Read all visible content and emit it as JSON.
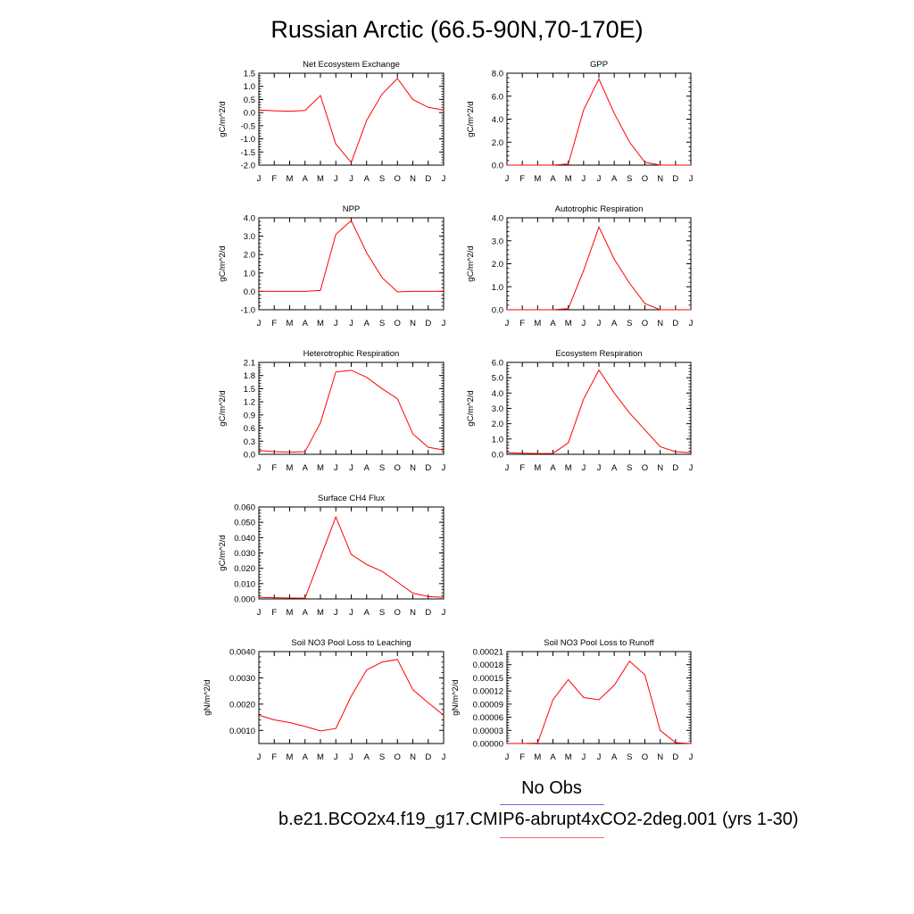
{
  "title": "Russian Arctic (66.5-90N,70-170E)",
  "legend": {
    "obs_label": "No Obs",
    "obs_color": "#0000ff",
    "case_label": "b.e21.BCO2x4.f19_g17.CMIP6-abrupt4xCO2-2deg.001 (yrs 1-30)",
    "case_color": "#ff0000"
  },
  "chart_data": [
    {
      "type": "line",
      "title": "Net Ecosystem Exchange",
      "ylabel": "gC/m^2/d",
      "categories": [
        "J",
        "F",
        "M",
        "A",
        "M",
        "J",
        "J",
        "A",
        "S",
        "O",
        "N",
        "D",
        "J"
      ],
      "ylim": [
        -2.0,
        1.5
      ],
      "yticks": [
        1.5,
        1.0,
        0.5,
        0.0,
        -0.5,
        -1.0,
        -1.5,
        -2.0
      ],
      "ytick_labels": [
        "1.5",
        "1.0",
        "0.5",
        "0.0",
        "-0.5",
        "-1.0",
        "-1.5",
        "-2.0"
      ],
      "series": [
        {
          "values": [
            0.1,
            0.07,
            0.05,
            0.08,
            0.65,
            -1.2,
            -1.9,
            -0.3,
            0.7,
            1.3,
            0.5,
            0.2,
            0.1
          ]
        }
      ]
    },
    {
      "type": "line",
      "title": "GPP",
      "ylabel": "gC/m^2/d",
      "categories": [
        "J",
        "F",
        "M",
        "A",
        "M",
        "J",
        "J",
        "A",
        "S",
        "O",
        "N",
        "D",
        "J"
      ],
      "ylim": [
        0.0,
        8.0
      ],
      "yticks": [
        8.0,
        6.0,
        4.0,
        2.0,
        0.0
      ],
      "ytick_labels": [
        "8.0",
        "6.0",
        "4.0",
        "2.0",
        "0.0"
      ],
      "series": [
        {
          "values": [
            0.0,
            0.0,
            0.0,
            0.0,
            0.1,
            4.8,
            7.5,
            4.5,
            2.0,
            0.25,
            0.0,
            0.0,
            0.0
          ]
        }
      ]
    },
    {
      "type": "line",
      "title": "NPP",
      "ylabel": "gC/m^2/d",
      "categories": [
        "J",
        "F",
        "M",
        "A",
        "M",
        "J",
        "J",
        "A",
        "S",
        "O",
        "N",
        "D",
        "J"
      ],
      "ylim": [
        -1.0,
        4.0
      ],
      "yticks": [
        4.0,
        3.0,
        2.0,
        1.0,
        0.0,
        -1.0
      ],
      "ytick_labels": [
        "4.0",
        "3.0",
        "2.0",
        "1.0",
        "0.0",
        "-1.0"
      ],
      "series": [
        {
          "values": [
            0.0,
            0.0,
            0.0,
            0.0,
            0.05,
            3.1,
            3.85,
            2.1,
            0.75,
            -0.03,
            0.0,
            0.0,
            0.0
          ]
        }
      ]
    },
    {
      "type": "line",
      "title": "Autotrophic Respiration",
      "ylabel": "gC/m^2/d",
      "categories": [
        "J",
        "F",
        "M",
        "A",
        "M",
        "J",
        "J",
        "A",
        "S",
        "O",
        "N",
        "D",
        "J"
      ],
      "ylim": [
        0.0,
        4.0
      ],
      "yticks": [
        4.0,
        3.0,
        2.0,
        1.0,
        0.0
      ],
      "ytick_labels": [
        "4.0",
        "3.0",
        "2.0",
        "1.0",
        "0.0"
      ],
      "series": [
        {
          "values": [
            0.0,
            0.0,
            0.0,
            0.0,
            0.05,
            1.7,
            3.6,
            2.2,
            1.15,
            0.27,
            0.0,
            0.0,
            0.0
          ]
        }
      ]
    },
    {
      "type": "line",
      "title": "Heterotrophic Respiration",
      "ylabel": "gC/m^2/d",
      "categories": [
        "J",
        "F",
        "M",
        "A",
        "M",
        "J",
        "J",
        "A",
        "S",
        "O",
        "N",
        "D",
        "J"
      ],
      "ylim": [
        0.0,
        2.1
      ],
      "yticks": [
        2.1,
        1.8,
        1.5,
        1.2,
        0.9,
        0.6,
        0.3,
        0.0
      ],
      "ytick_labels": [
        "2.1",
        "1.8",
        "1.5",
        "1.2",
        "0.9",
        "0.6",
        "0.3",
        "0.0"
      ],
      "series": [
        {
          "values": [
            0.09,
            0.06,
            0.05,
            0.06,
            0.72,
            1.88,
            1.92,
            1.76,
            1.5,
            1.27,
            0.47,
            0.16,
            0.1
          ]
        }
      ]
    },
    {
      "type": "line",
      "title": "Ecosystem Respiration",
      "ylabel": "gC/m^2/d",
      "categories": [
        "J",
        "F",
        "M",
        "A",
        "M",
        "J",
        "J",
        "A",
        "S",
        "O",
        "N",
        "D",
        "J"
      ],
      "ylim": [
        0.0,
        6.0
      ],
      "yticks": [
        6.0,
        5.0,
        4.0,
        3.0,
        2.0,
        1.0,
        0.0
      ],
      "ytick_labels": [
        "6.0",
        "5.0",
        "4.0",
        "3.0",
        "2.0",
        "1.0",
        "0.0"
      ],
      "series": [
        {
          "values": [
            0.1,
            0.07,
            0.05,
            0.06,
            0.75,
            3.6,
            5.5,
            4.0,
            2.7,
            1.6,
            0.5,
            0.17,
            0.1
          ]
        }
      ]
    },
    {
      "type": "line",
      "title": "Surface CH4 Flux",
      "ylabel": "gC/m^2/d",
      "categories": [
        "J",
        "F",
        "M",
        "A",
        "M",
        "J",
        "J",
        "A",
        "S",
        "O",
        "N",
        "D",
        "J"
      ],
      "ylim": [
        0.0,
        0.06
      ],
      "yticks": [
        0.06,
        0.05,
        0.04,
        0.03,
        0.02,
        0.01,
        0.0
      ],
      "ytick_labels": [
        "0.060",
        "0.050",
        "0.040",
        "0.030",
        "0.020",
        "0.010",
        "0.000"
      ],
      "series": [
        {
          "values": [
            0.001,
            0.0008,
            0.0006,
            0.0005,
            0.027,
            0.0535,
            0.029,
            0.0225,
            0.018,
            0.011,
            0.0038,
            0.0015,
            0.001
          ]
        }
      ]
    },
    {
      "type": "line",
      "title": "Soil NO3 Pool Loss to Leaching",
      "ylabel": "gN/m^2/d",
      "categories": [
        "J",
        "F",
        "M",
        "A",
        "M",
        "J",
        "J",
        "A",
        "S",
        "O",
        "N",
        "D",
        "J"
      ],
      "ylim": [
        0.0005,
        0.004
      ],
      "yticks": [
        0.004,
        0.003,
        0.002,
        0.001
      ],
      "ytick_labels": [
        "0.0040",
        "0.0030",
        "0.0020",
        "0.0010"
      ],
      "series": [
        {
          "values": [
            0.00158,
            0.0014,
            0.0013,
            0.00115,
            0.00098,
            0.00107,
            0.0023,
            0.0033,
            0.0036,
            0.0037,
            0.00255,
            0.00205,
            0.00158
          ]
        }
      ]
    },
    {
      "type": "line",
      "title": "Soil NO3 Pool Loss to Runoff",
      "ylabel": "gN/m^2/d",
      "categories": [
        "J",
        "F",
        "M",
        "A",
        "M",
        "J",
        "J",
        "A",
        "S",
        "O",
        "N",
        "D",
        "J"
      ],
      "ylim": [
        0.0,
        0.00021
      ],
      "yticks": [
        0.00021,
        0.00018,
        0.00015,
        0.00012,
        9e-05,
        6e-05,
        3e-05,
        0.0
      ],
      "ytick_labels": [
        "0.00021",
        "0.00018",
        "0.00015",
        "0.00012",
        "0.00009",
        "0.00006",
        "0.00003",
        "0.00000"
      ],
      "series": [
        {
          "values": [
            0.0,
            0.0,
            1e-06,
            0.0001,
            0.000146,
            0.000105,
            0.0001,
            0.000133,
            0.000188,
            0.000157,
            3e-05,
            2e-06,
            0.0
          ]
        }
      ]
    }
  ]
}
